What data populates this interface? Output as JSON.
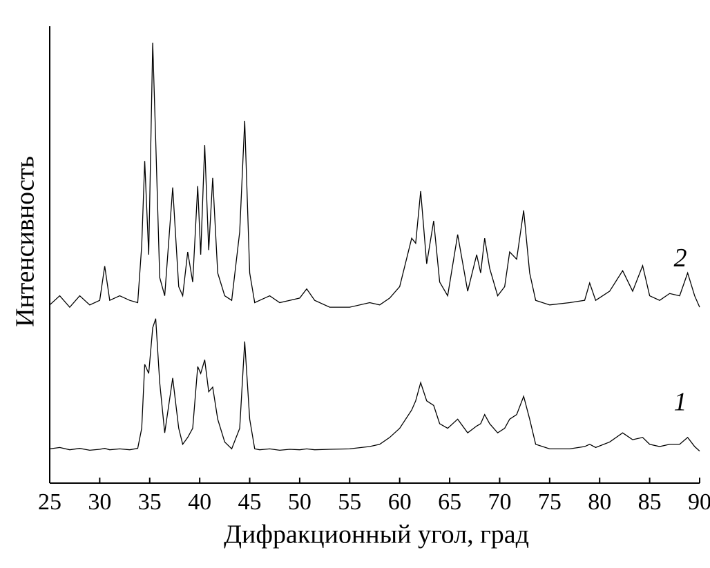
{
  "chart_data": {
    "type": "line",
    "x_label": "Дифракционный угол, град",
    "y_label": "Интенсивность",
    "x": [
      25,
      26,
      27,
      28,
      29,
      30,
      30.5,
      31,
      32,
      33,
      33.8,
      34.2,
      34.5,
      34.9,
      35.3,
      35.6,
      36,
      36.5,
      37.3,
      37.9,
      38.3,
      38.8,
      39.3,
      39.8,
      40.1,
      40.5,
      40.9,
      41.3,
      41.8,
      42.5,
      43.2,
      44,
      44.5,
      45,
      45.5,
      46,
      47,
      48,
      49,
      50,
      50.7,
      51.5,
      53,
      55,
      57,
      58,
      59,
      60,
      61.2,
      61.6,
      62.1,
      62.7,
      63.4,
      64,
      64.8,
      65.8,
      66.8,
      67.7,
      68.1,
      68.5,
      69,
      69.8,
      70.5,
      71,
      71.7,
      72.4,
      73,
      73.6,
      75,
      77,
      78.5,
      79,
      79.6,
      81,
      82.3,
      83.3,
      84.3,
      85,
      86,
      87,
      88,
      88.8,
      89.5,
      90
    ],
    "series": [
      {
        "name": "1",
        "color": "#000000",
        "values": [
          7.5,
          7.8,
          7.3,
          7.6,
          7.2,
          7.4,
          7.6,
          7.3,
          7.5,
          7.3,
          7.6,
          12,
          26,
          24,
          34,
          36,
          22,
          11,
          23,
          12,
          8.5,
          10,
          12,
          25.5,
          24,
          27,
          20,
          21,
          14,
          9,
          7.5,
          12,
          31,
          14,
          7.5,
          7.3,
          7.5,
          7.2,
          7.4,
          7.3,
          7.5,
          7.3,
          7.4,
          7.5,
          8,
          8.5,
          10,
          12,
          16,
          18,
          22,
          18,
          17,
          13,
          12,
          14,
          11,
          12.5,
          13,
          15,
          13,
          11,
          12,
          14,
          15,
          19,
          14,
          8.5,
          7.5,
          7.5,
          8,
          8.5,
          7.8,
          9,
          11,
          9.5,
          10,
          8.5,
          8,
          8.5,
          8.5,
          10,
          8,
          7
        ]
      },
      {
        "name": "2",
        "color": "#000000",
        "values": [
          39,
          41,
          38.5,
          41,
          39,
          40,
          47.5,
          40,
          41,
          40,
          39.5,
          52,
          70.5,
          50,
          96.4,
          75,
          45,
          41,
          64.7,
          43,
          41,
          50.6,
          44,
          65,
          50,
          74,
          51,
          66.8,
          46,
          41,
          40,
          55,
          79.3,
          46,
          39.5,
          40,
          41,
          39.5,
          40,
          40.5,
          42.5,
          40,
          38.5,
          38.5,
          39.5,
          39,
          40.5,
          43,
          53.6,
          52.5,
          63.9,
          48,
          57.4,
          44,
          41,
          54.4,
          42,
          50,
          46,
          53.6,
          47,
          41,
          43,
          50.6,
          49,
          59.7,
          46,
          40,
          39,
          39.5,
          40,
          43.8,
          40,
          42,
          46.5,
          42,
          47.6,
          41,
          40,
          41.5,
          41,
          46,
          41,
          38.5
        ]
      }
    ],
    "xlim": [
      25,
      90
    ],
    "xticks": [
      25,
      30,
      35,
      40,
      45,
      50,
      55,
      60,
      65,
      70,
      75,
      80,
      85,
      90
    ],
    "ylim": [
      0,
      100
    ],
    "grid": false
  }
}
